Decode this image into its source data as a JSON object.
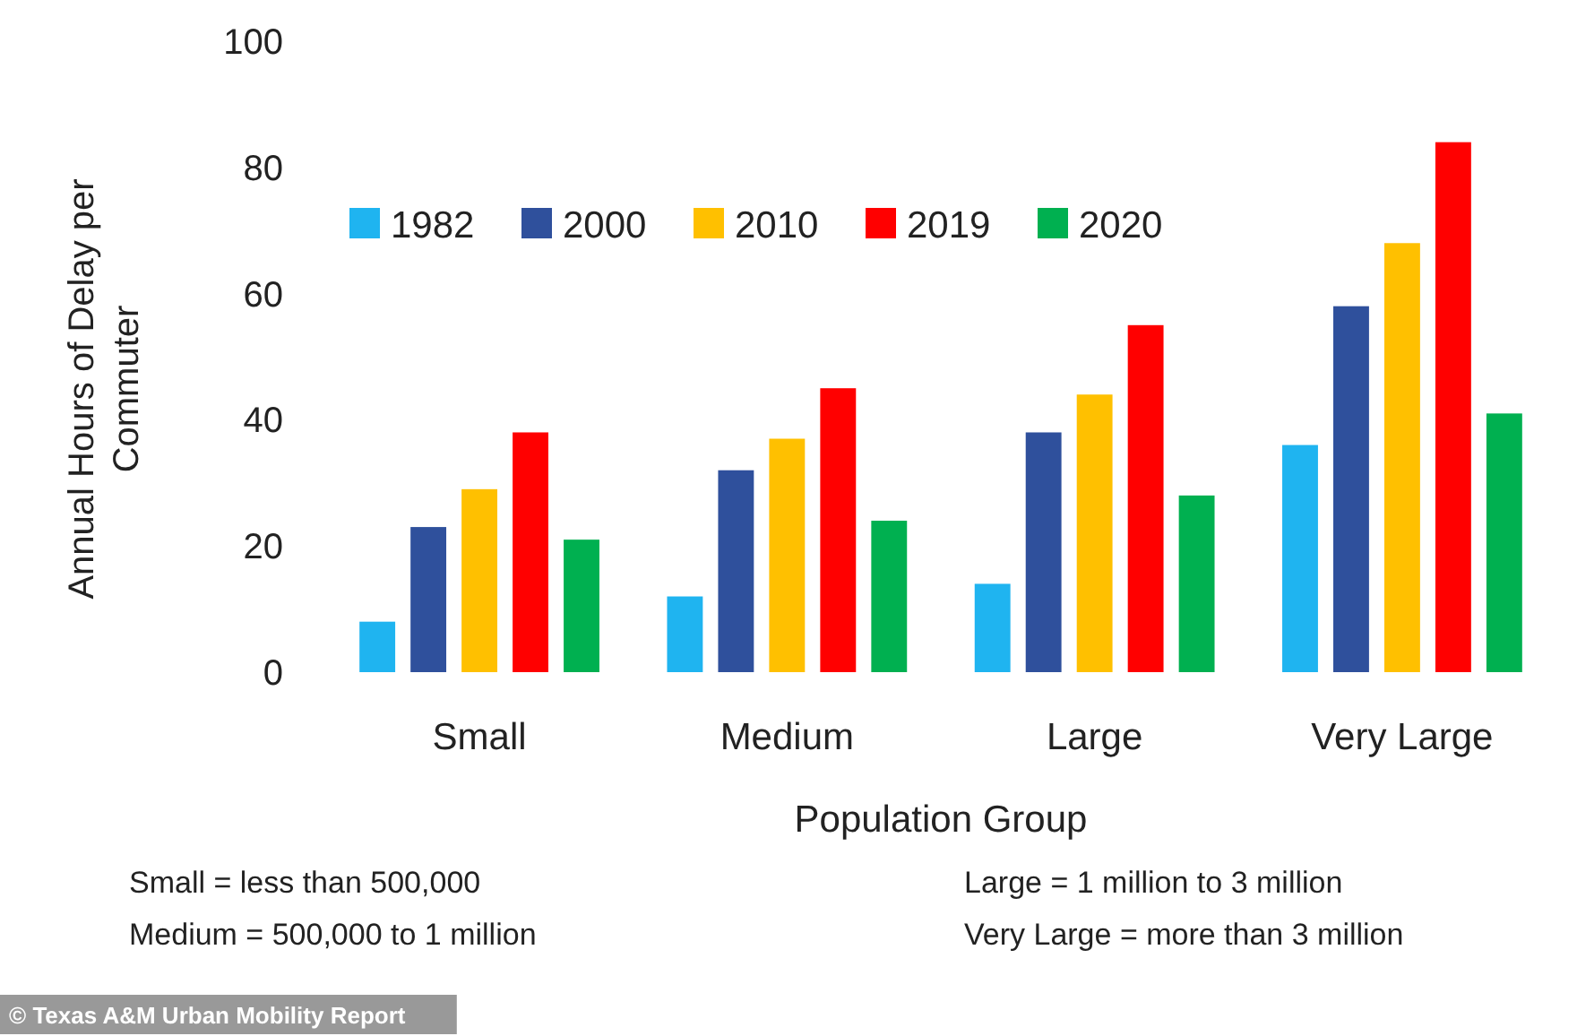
{
  "chart_data": {
    "type": "bar",
    "xlabel": "Population Group",
    "ylabel": "Annual Hours of Delay per Commuter",
    "categories": [
      "Small",
      "Medium",
      "Large",
      "Very Large"
    ],
    "series": [
      {
        "name": "1982",
        "color": "#1fb4f0",
        "values": [
          8,
          12,
          14,
          36
        ]
      },
      {
        "name": "2000",
        "color": "#2f509c",
        "values": [
          23,
          32,
          38,
          58
        ]
      },
      {
        "name": "2010",
        "color": "#ffc000",
        "values": [
          29,
          37,
          44,
          68
        ]
      },
      {
        "name": "2019",
        "color": "#ff0000",
        "values": [
          38,
          45,
          55,
          84
        ]
      },
      {
        "name": "2020",
        "color": "#00b050",
        "values": [
          21,
          24,
          28,
          41
        ]
      }
    ],
    "ylim": [
      0,
      100
    ],
    "yticks": [
      0,
      20,
      40,
      60,
      80,
      100
    ],
    "grid": false,
    "legend": "top left",
    "annotations": [
      "Small = less than 500,000",
      "Medium = 500,000 to 1 million",
      "Large = 1 million to 3 million",
      "Very Large = more than 3 million",
      "© Texas A&M Urban Mobility Report"
    ]
  }
}
